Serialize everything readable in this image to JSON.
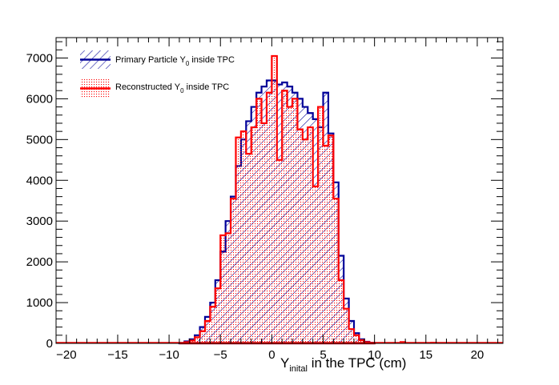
{
  "chart_data": {
    "type": "bar",
    "style": "step-histogram",
    "xlabel_main": "Y",
    "xlabel_sub": "inital",
    "xlabel_rest": " in the TPC (cm)",
    "ylabel": "",
    "xlim": [
      -21,
      22.5
    ],
    "ylim": [
      0,
      7500
    ],
    "grid": false,
    "legend_position": "top-left",
    "x_ticks": [
      -20,
      -15,
      -10,
      -5,
      0,
      5,
      10,
      15,
      20
    ],
    "y_ticks": [
      0,
      1000,
      2000,
      3000,
      4000,
      5000,
      6000,
      7000
    ],
    "x_tick_labels": [
      "−20",
      "−15",
      "−10",
      "−5",
      "0",
      "5",
      "10",
      "15",
      "20"
    ],
    "y_tick_labels": [
      "0",
      "1000",
      "2000",
      "3000",
      "4000",
      "5000",
      "6000",
      "7000"
    ],
    "bin_width": 0.5,
    "bin_start": -9.0,
    "series": [
      {
        "name_main": "Primary Particle Y",
        "name_sub": "0",
        "name_rest": " inside TPC",
        "color": "#000099",
        "fill": "hatch-blue",
        "values": [
          10,
          50,
          100,
          200,
          400,
          650,
          1000,
          1550,
          2250,
          3000,
          3600,
          4350,
          5000,
          5450,
          5800,
          6150,
          6300,
          6450,
          6450,
          6350,
          6400,
          6300,
          6150,
          6000,
          5800,
          5650,
          5500,
          5300,
          6150,
          5150,
          3950,
          2150,
          1100,
          550,
          250,
          100,
          40,
          15
        ]
      },
      {
        "name_main": "Reconstructed Y",
        "name_sub": "0",
        "name_rest": " inside TPC",
        "color": "#ff0000",
        "fill": "dots-red",
        "values": [
          0,
          30,
          70,
          150,
          300,
          550,
          900,
          1350,
          2650,
          2700,
          3550,
          5050,
          5200,
          4650,
          5300,
          6000,
          5400,
          6150,
          7050,
          4500,
          6200,
          5800,
          6000,
          5250,
          5000,
          5300,
          3850,
          5800,
          4850,
          5100,
          3550,
          1550,
          850,
          350,
          200,
          80,
          30,
          10
        ]
      }
    ],
    "tails": [
      {
        "x": 12.5,
        "value": 40
      },
      {
        "x": 15.5,
        "value": 25
      },
      {
        "x": 20.5,
        "value": 15
      }
    ]
  }
}
